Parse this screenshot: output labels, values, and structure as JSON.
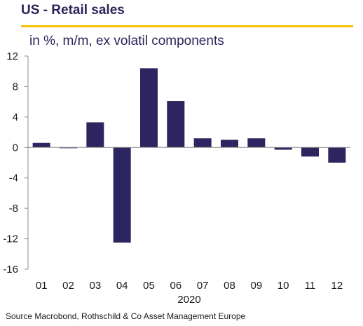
{
  "title": "US - Retail sales",
  "subtitle": "in %, m/m, ex volatil components",
  "source": "Source Macrobond, Rothschild & Co Asset Management Europe",
  "colors": {
    "bar": "#2d2560",
    "accent_rule": "#f2c400",
    "axis": "#8c8c8c",
    "text": "#1a1a1a"
  },
  "chart_data": {
    "type": "bar",
    "categories": [
      "01",
      "02",
      "03",
      "04",
      "05",
      "06",
      "07",
      "08",
      "09",
      "10",
      "11",
      "12"
    ],
    "values": [
      0.6,
      -0.1,
      3.3,
      -12.5,
      10.4,
      6.1,
      1.2,
      1.0,
      1.2,
      -0.3,
      -1.2,
      -2.0
    ],
    "xlabel": "2020",
    "ylim": [
      -16,
      12
    ],
    "yticks": [
      12,
      8,
      4,
      0,
      -4,
      -8,
      -12,
      -16
    ],
    "ytick_labels": [
      "12",
      "8",
      "4",
      "0",
      "-4",
      "-8",
      "-12",
      "-16"
    ],
    "grid": false,
    "legend": "none"
  }
}
